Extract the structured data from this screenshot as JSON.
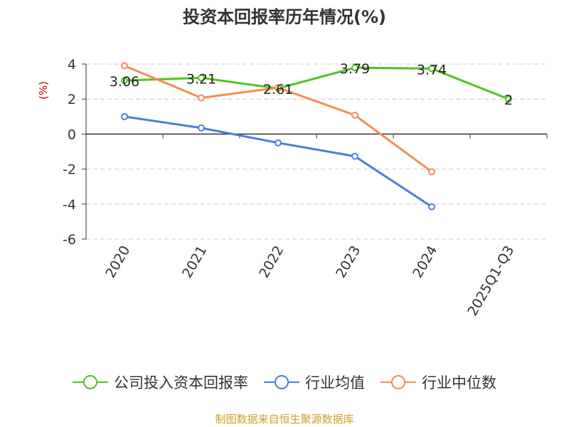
{
  "chart_data": {
    "type": "line",
    "title": "投资本回报率历年情况(%)",
    "ylabel": "(%)",
    "xlabel": "",
    "categories": [
      "2020",
      "2021",
      "2022",
      "2023",
      "2024",
      "2025Q1-Q3"
    ],
    "ylim": [
      -6,
      4
    ],
    "yticks": [
      4,
      2,
      0,
      -2,
      -4,
      -6
    ],
    "grid": true,
    "legend_position": "bottom",
    "series": [
      {
        "name": "公司投入资本回报率",
        "color": "#52c41a",
        "values": [
          3.06,
          3.21,
          2.61,
          3.79,
          3.74,
          2
        ],
        "labels": [
          "3.06",
          "3.21",
          "2.61",
          "3.79",
          "3.74",
          "2"
        ]
      },
      {
        "name": "行业均值",
        "color": "#4a7ddf",
        "values": [
          1.0,
          0.35,
          -0.5,
          -1.27,
          -4.15,
          null
        ]
      },
      {
        "name": "行业中位数",
        "color": "#f58d55",
        "values": [
          3.9,
          2.07,
          2.65,
          1.08,
          -2.15,
          null
        ]
      }
    ]
  },
  "source_text": "制图数据来自恒生聚源数据库"
}
